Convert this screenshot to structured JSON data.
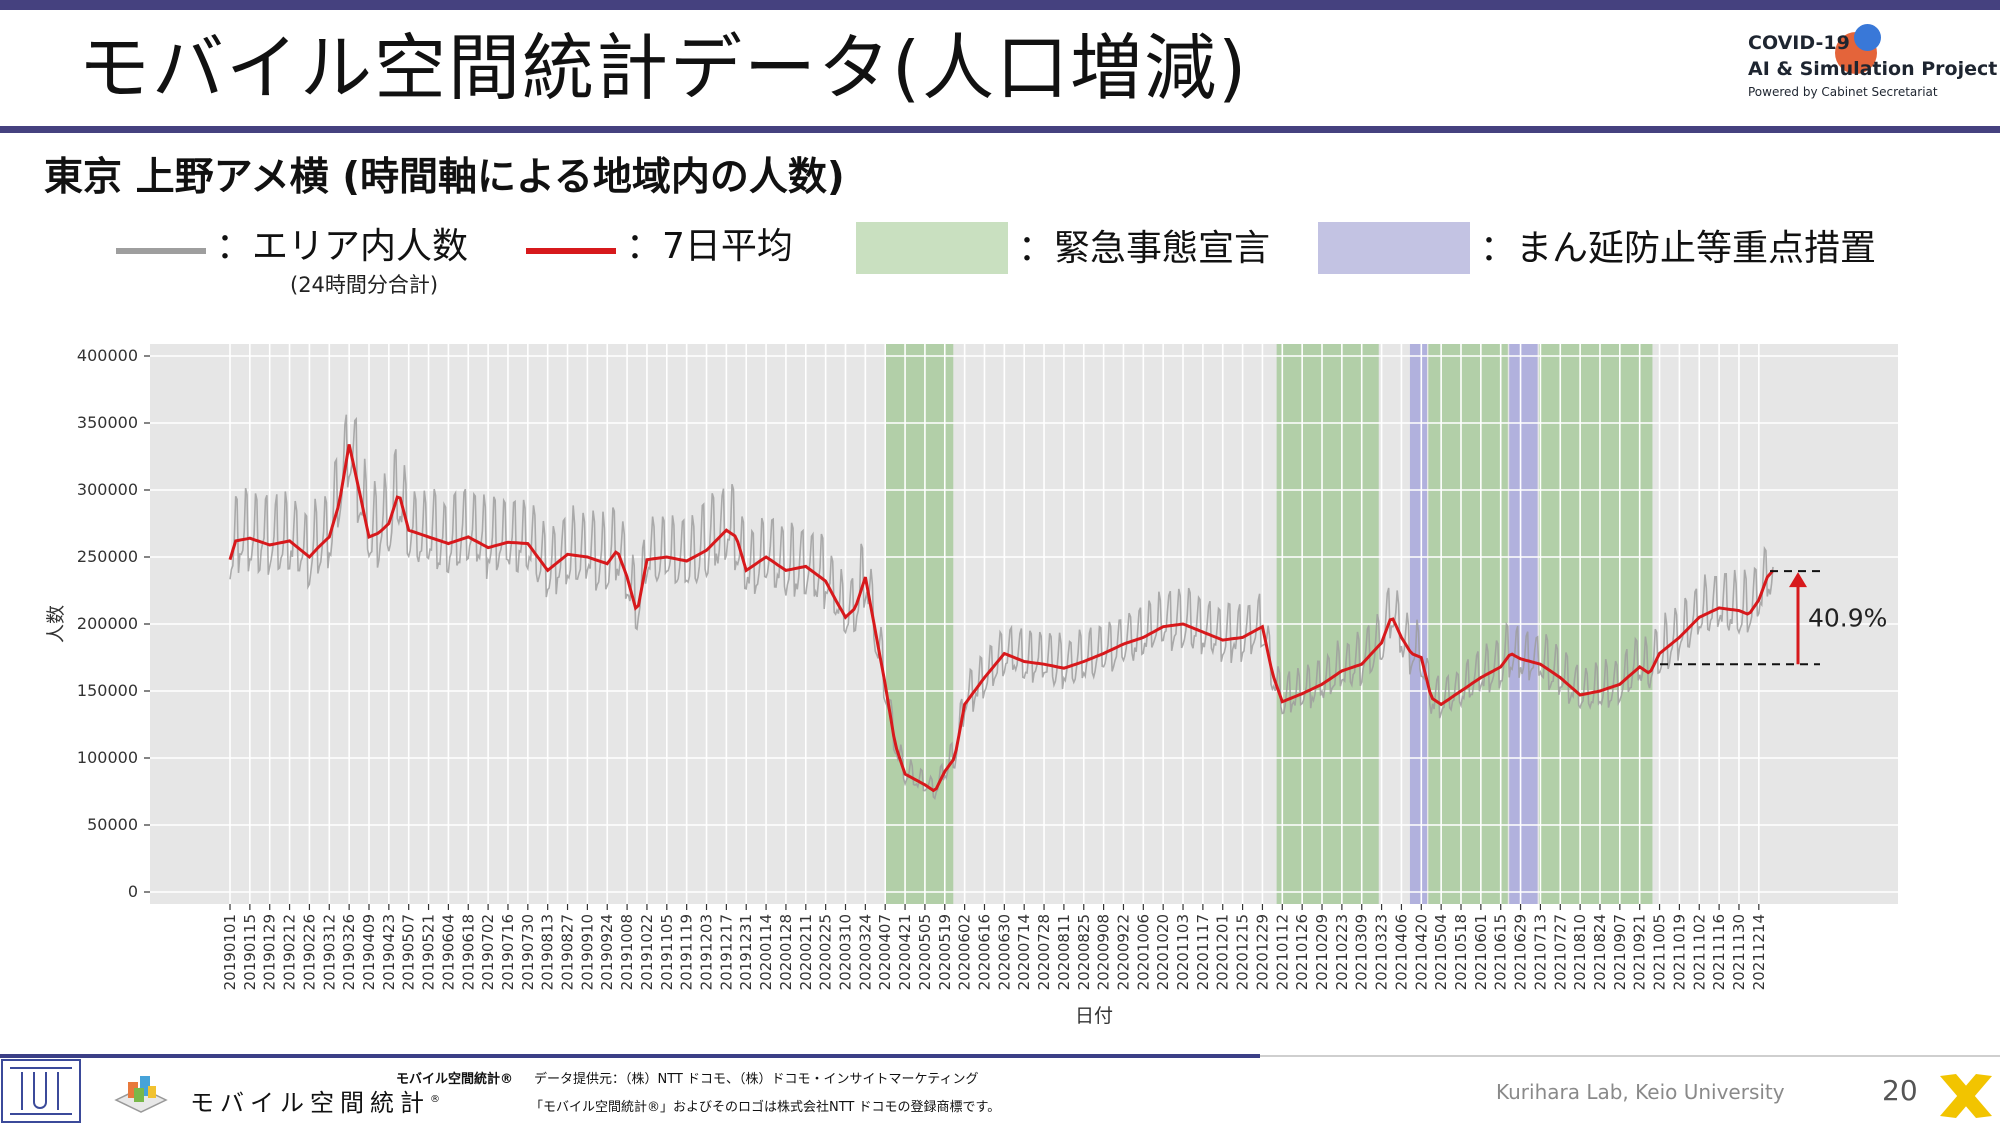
{
  "slide": {
    "title": "モバイル空間統計データ(人口増減)",
    "subtitle": "東京 上野アメ横 (時間軸による地域内の人数)",
    "page_number": "20",
    "lab": "Kurihara Lab, Keio University"
  },
  "logo": {
    "line1": "COVID-19",
    "line2": "AI & Simulation Project",
    "line3": "Powered by Cabinet Secretariat"
  },
  "legend": {
    "raw": "：エリア内人数",
    "raw_note": "(24時間分合計)",
    "avg": "：7日平均",
    "emergency": "：緊急事態宣言",
    "manbou": "：まん延防止等重点措置"
  },
  "colors": {
    "raw": "#9e9e9e",
    "avg": "#d7191c",
    "emergency": "#c9e0c0",
    "manbou": "#c3c3e3",
    "panel": "#e6e6e6",
    "accent": "#45417f"
  },
  "footer": {
    "brand": "モバイル空間統計",
    "brand_mark": "®",
    "provider_label": "モバイル空間統計®",
    "provider": "データ提供元：（株）NTT ドコモ、（株）ドコモ・インサイトマーケティング",
    "trademark": "「モバイル空間統計®」およびそのロゴは株式会社NTT ドコモの登録商標です。"
  },
  "chart_data": {
    "type": "line",
    "xlabel": "日付",
    "ylabel": "人数",
    "ylim": [
      0,
      400000
    ],
    "yticks": [
      0,
      50000,
      100000,
      150000,
      200000,
      250000,
      300000,
      350000,
      400000
    ],
    "x_start": "20190101",
    "x_end": "20211224",
    "x_tick_labels": [
      "20190101",
      "20190115",
      "20190129",
      "20190212",
      "20190226",
      "20190312",
      "20190326",
      "20190409",
      "20190423",
      "20190507",
      "20190521",
      "20190604",
      "20190618",
      "20190702",
      "20190716",
      "20190730",
      "20190813",
      "20190827",
      "20190910",
      "20190924",
      "20191008",
      "20191022",
      "20191105",
      "20191119",
      "20191203",
      "20191217",
      "20191231",
      "20200114",
      "20200128",
      "20200211",
      "20200225",
      "20200310",
      "20200324",
      "20200407",
      "20200421",
      "20200505",
      "20200519",
      "20200602",
      "20200616",
      "20200630",
      "20200714",
      "20200728",
      "20200811",
      "20200825",
      "20200908",
      "20200922",
      "20201006",
      "20201020",
      "20201103",
      "20201117",
      "20201201",
      "20201215",
      "20201229",
      "20210112",
      "20210126",
      "20210209",
      "20210223",
      "20210309",
      "20210323",
      "20210406",
      "20210420",
      "20210504",
      "20210518",
      "20210601",
      "20210615",
      "20210629",
      "20210713",
      "20210727",
      "20210810",
      "20210824",
      "20210907",
      "20210921",
      "20211005",
      "20211019",
      "20211102",
      "20211116",
      "20211130",
      "20211214"
    ],
    "emergency_periods": [
      [
        "20200407",
        "20200525"
      ],
      [
        "20210108",
        "20210321"
      ],
      [
        "20210425",
        "20210620"
      ],
      [
        "20210712",
        "20210930"
      ]
    ],
    "manbou_periods": [
      [
        "20210412",
        "20210424"
      ],
      [
        "20210621",
        "20210711"
      ]
    ],
    "series": [
      {
        "key": "avg",
        "points": [
          [
            "20190101",
            248000
          ],
          [
            "20190105",
            262000
          ],
          [
            "20190115",
            264000
          ],
          [
            "20190129",
            259000
          ],
          [
            "20190212",
            262000
          ],
          [
            "20190226",
            250000
          ],
          [
            "20190305",
            258000
          ],
          [
            "20190312",
            265000
          ],
          [
            "20190319",
            290000
          ],
          [
            "20190326",
            334000
          ],
          [
            "20190402",
            300000
          ],
          [
            "20190409",
            265000
          ],
          [
            "20190416",
            268000
          ],
          [
            "20190423",
            275000
          ],
          [
            "20190430",
            298000
          ],
          [
            "20190507",
            270000
          ],
          [
            "20190521",
            265000
          ],
          [
            "20190604",
            260000
          ],
          [
            "20190618",
            265000
          ],
          [
            "20190702",
            257000
          ],
          [
            "20190716",
            261000
          ],
          [
            "20190730",
            260000
          ],
          [
            "20190813",
            240000
          ],
          [
            "20190827",
            252000
          ],
          [
            "20190910",
            250000
          ],
          [
            "20190924",
            245000
          ],
          [
            "20191001",
            255000
          ],
          [
            "20191008",
            235000
          ],
          [
            "20191015",
            208000
          ],
          [
            "20191022",
            248000
          ],
          [
            "20191105",
            250000
          ],
          [
            "20191119",
            247000
          ],
          [
            "20191203",
            255000
          ],
          [
            "20191217",
            270000
          ],
          [
            "20191224",
            265000
          ],
          [
            "20191231",
            240000
          ],
          [
            "20200114",
            250000
          ],
          [
            "20200128",
            240000
          ],
          [
            "20200211",
            243000
          ],
          [
            "20200225",
            232000
          ],
          [
            "20200303",
            218000
          ],
          [
            "20200310",
            205000
          ],
          [
            "20200317",
            212000
          ],
          [
            "20200324",
            235000
          ],
          [
            "20200331",
            195000
          ],
          [
            "20200407",
            155000
          ],
          [
            "20200414",
            110000
          ],
          [
            "20200421",
            88000
          ],
          [
            "20200505",
            80000
          ],
          [
            "20200512",
            75000
          ],
          [
            "20200519",
            90000
          ],
          [
            "20200526",
            100000
          ],
          [
            "20200602",
            140000
          ],
          [
            "20200616",
            160000
          ],
          [
            "20200630",
            178000
          ],
          [
            "20200714",
            172000
          ],
          [
            "20200728",
            170000
          ],
          [
            "20200811",
            167000
          ],
          [
            "20200825",
            172000
          ],
          [
            "20200908",
            178000
          ],
          [
            "20200922",
            185000
          ],
          [
            "20201006",
            190000
          ],
          [
            "20201020",
            198000
          ],
          [
            "20201103",
            200000
          ],
          [
            "20201117",
            194000
          ],
          [
            "20201201",
            188000
          ],
          [
            "20201215",
            190000
          ],
          [
            "20201229",
            198000
          ],
          [
            "20210105",
            163000
          ],
          [
            "20210112",
            142000
          ],
          [
            "20210126",
            148000
          ],
          [
            "20210209",
            155000
          ],
          [
            "20210223",
            165000
          ],
          [
            "20210309",
            170000
          ],
          [
            "20210323",
            186000
          ],
          [
            "20210330",
            206000
          ],
          [
            "20210406",
            190000
          ],
          [
            "20210413",
            178000
          ],
          [
            "20210420",
            175000
          ],
          [
            "20210427",
            145000
          ],
          [
            "20210504",
            140000
          ],
          [
            "20210518",
            150000
          ],
          [
            "20210601",
            160000
          ],
          [
            "20210615",
            168000
          ],
          [
            "20210622",
            178000
          ],
          [
            "20210629",
            174000
          ],
          [
            "20210713",
            170000
          ],
          [
            "20210727",
            160000
          ],
          [
            "20210810",
            147000
          ],
          [
            "20210824",
            150000
          ],
          [
            "20210907",
            155000
          ],
          [
            "20210921",
            168000
          ],
          [
            "20210928",
            163000
          ],
          [
            "20211005",
            178000
          ],
          [
            "20211019",
            190000
          ],
          [
            "20211102",
            205000
          ],
          [
            "20211116",
            212000
          ],
          [
            "20211130",
            210000
          ],
          [
            "20211207",
            207000
          ],
          [
            "20211214",
            218000
          ],
          [
            "20211220",
            235000
          ],
          [
            "20211224",
            240000
          ]
        ]
      }
    ],
    "annotation": {
      "label": "40.9%",
      "from_value": 170000,
      "to_value": 239500
    }
  }
}
